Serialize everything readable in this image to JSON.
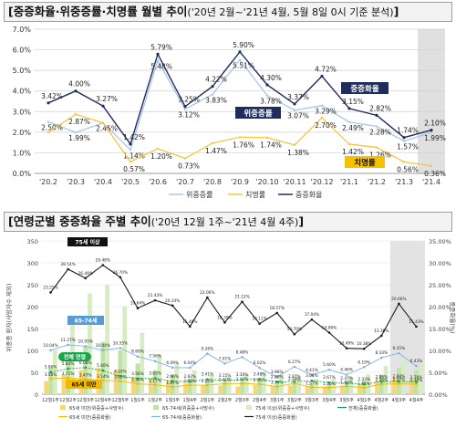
{
  "chart_data": [
    {
      "type": "line",
      "title": "[중증화율·위중증률·치명률 월별 추이",
      "subtitle": "('20년 2월~'21년 4월, 5월 8일 0시 기준 분석)",
      "title_close": "]",
      "categories": [
        "'20.2",
        "'20.3",
        "'20.4",
        "'20.5",
        "'20.6",
        "'20.7",
        "'20.8",
        "'20.9",
        "'20.10",
        "'20.11",
        "'20.12",
        "'21.1",
        "'21.2",
        "'21.3",
        "'21.4"
      ],
      "ylim": [
        0,
        7
      ],
      "yticks": [
        "0.0%",
        "1.0%",
        "2.0%",
        "3.0%",
        "4.0%",
        "5.0%",
        "6.0%",
        "7.0%"
      ],
      "grid": true,
      "legend": "bottom",
      "shaded_category": "'21.4",
      "series": [
        {
          "name": "위중증률",
          "color": "#a7c7e7",
          "values": [
            2.5,
            1.99,
            2.45,
            1.14,
            5.48,
            3.12,
            3.83,
            5.51,
            3.78,
            3.07,
            3.29,
            2.49,
            2.28,
            1.57,
            1.99
          ],
          "labels": [
            "2.50%",
            "1.99%",
            "2.45%",
            "1.14%",
            "5.48%",
            "3.12%",
            "3.83%",
            "5.51%",
            "3.78%",
            "3.07%",
            "3.29%",
            "2.49%",
            "2.28%",
            "1.57%",
            "1.99%"
          ]
        },
        {
          "name": "치명률",
          "color": "#f6c542",
          "values": [
            1.99,
            2.87,
            2.45,
            0.57,
            1.2,
            0.73,
            1.47,
            1.76,
            1.74,
            1.38,
            2.7,
            1.42,
            1.26,
            0.56,
            0.36
          ],
          "labels": [
            "",
            "2.87%",
            "",
            "0.57%",
            "1.20%",
            "0.73%",
            "1.47%",
            "1.76%",
            "1.74%",
            "1.38%",
            "2.70%",
            "1.42%",
            "1.26%",
            "0.56%",
            "0.36%"
          ]
        },
        {
          "name": "중증화율",
          "color": "#1f2d5c",
          "values": [
            3.42,
            4.0,
            3.27,
            1.42,
            5.79,
            3.25,
            4.22,
            5.9,
            4.3,
            3.37,
            4.72,
            3.15,
            2.82,
            1.74,
            2.1
          ],
          "labels": [
            "3.42%",
            "4.00%",
            "3.27%",
            "1.42%",
            "5.79%",
            "3.25%",
            "4.22%",
            "5.90%",
            "4.30%",
            "3.37%",
            "4.72%",
            "3.15%",
            "2.82%",
            "1.74%",
            "2.10%"
          ]
        }
      ],
      "callouts": [
        {
          "text": "중증화율",
          "bg": "#1f2d5c",
          "fg": "#ffffff"
        },
        {
          "text": "위중증률",
          "bg": "#1f2d5c",
          "fg": "#ffffff"
        },
        {
          "text": "치명률",
          "bg": "#f6c000",
          "fg": "#111111"
        }
      ]
    },
    {
      "type": "bar+line",
      "title": "[연령군별 중증화율 주별 추이",
      "subtitle": "('20년 12월 1주~'21년 4월 4주)",
      "title_close": "]",
      "ylabel_left": "위중증 환자(사망자수 제외)",
      "ylabel_right": "중증화율(%)",
      "categories": [
        "12월1주",
        "12월2주",
        "12월3주",
        "12월4주",
        "12월5주",
        "1월1주",
        "1월2주",
        "1월3주",
        "1월4주",
        "2월1주",
        "2월2주",
        "2월3주",
        "2월4주",
        "3월1주",
        "3월2주",
        "3월3주",
        "3월4주",
        "3월5주",
        "4월1주",
        "4월2주",
        "4월3주",
        "4월4주"
      ],
      "y_left_lim": [
        0,
        350
      ],
      "y_left_ticks": [
        "0",
        "50",
        "100",
        "150",
        "200",
        "250",
        "300",
        "350"
      ],
      "y_right_lim": [
        0,
        35
      ],
      "y_right_ticks": [
        "0.00%",
        "5.00%",
        "10.00%",
        "15.00%",
        "20.00%",
        "25.00%",
        "30.00%",
        "35.00%"
      ],
      "shaded_categories": [
        "4월3주",
        "4월4주"
      ],
      "bars": [
        {
          "name": "65세 미만(위중증+사망수)",
          "color": "#f7d774",
          "values": [
            30,
            45,
            55,
            60,
            55,
            40,
            35,
            30,
            25,
            20,
            20,
            18,
            22,
            20,
            20,
            18,
            18,
            20,
            22,
            30,
            38,
            35
          ]
        },
        {
          "name": "65-74세(위중증+사망수)",
          "color": "#bfe3a6",
          "values": [
            60,
            90,
            110,
            120,
            100,
            70,
            55,
            45,
            35,
            30,
            28,
            30,
            35,
            30,
            28,
            25,
            25,
            28,
            30,
            45,
            60,
            55
          ]
        },
        {
          "name": "75세 이상(위중증+사망수)",
          "color": "#d8ecc4",
          "values": [
            100,
            160,
            230,
            250,
            200,
            140,
            90,
            70,
            55,
            45,
            40,
            45,
            50,
            45,
            40,
            35,
            35,
            40,
            45,
            65,
            80,
            75
          ]
        }
      ],
      "series": [
        {
          "name": "65세 미만(중증화율)",
          "color": "#f2b800",
          "values": [
            3.56,
            3.71,
            3.47,
            3.14,
            3.03,
            2.36,
            2.17,
            1.67,
            2.06,
            2.06,
            2.41,
            2.47,
            2.31,
            1.74,
            2.48,
            1.57,
            1.5,
            1.8,
            1.51,
            2.3,
            2.37,
            2.3
          ],
          "labels": [
            "3.56%",
            "3.71%",
            "3.47%",
            "3.14%",
            "3.03%",
            "2.36%",
            "2.17%",
            "1.67%",
            "2.06%",
            "2.06%",
            "2.41%",
            "2.47%",
            "2.31%",
            "1.74%",
            "2.48%",
            "1.57%",
            "1.50%",
            "1.80%",
            "1.51%",
            "2.30%",
            "2.37%",
            "2.30%"
          ]
        },
        {
          "name": "65-74세(중증화율)",
          "color": "#7fb2e5",
          "values": [
            10.04,
            11.27,
            10.95,
            10.04,
            10.55,
            8.6,
            7.56,
            6.09,
            6.04,
            9.26,
            7.01,
            8.48,
            6.02,
            3.96,
            6.27,
            4.41,
            5.6,
            4.46,
            6.19,
            8.33,
            9.35,
            6.43
          ],
          "labels": [
            "10.04%",
            "11.27%",
            "10.95%",
            "10.04%",
            "10.55%",
            "8.60%",
            "7.56%",
            "6.09%",
            "6.04%",
            "9.26%",
            "7.01%",
            "8.48%",
            "6.02%",
            "3.96%",
            "6.27%",
            "4.41%",
            "5.60%",
            "4.46%",
            "6.19%",
            "8.33%",
            "9.35%",
            "6.43%"
          ]
        },
        {
          "name": "75세 이상(중증화율)",
          "color": "#1a1a1a",
          "values": [
            23.25,
            28.54,
            26.49,
            29.48,
            26.7,
            19.64,
            21.43,
            20.24,
            15.46,
            22.06,
            16.39,
            21.12,
            16.11,
            18.57,
            13.7,
            17.04,
            14.06,
            10.49,
            10.38,
            13.36,
            20.66,
            15.43
          ],
          "labels": [
            "23.25%",
            "28.54%",
            "26.49%",
            "29.48%",
            "26.70%",
            "19.64%",
            "21.43%",
            "20.24%",
            "15.46%",
            "22.06%",
            "16.39%",
            "21.12%",
            "16.11%",
            "18.57%",
            "13.70%",
            "17.04%",
            "14.06%",
            "10.49%",
            "10.38%",
            "13.36%",
            "20.66%",
            "15.43%"
          ]
        },
        {
          "name": "전체(중증화율)",
          "color": "#1aa34a",
          "values": [
            5.06,
            5.83,
            6.08,
            5.4,
            4.1,
            3.56,
            3.65,
            2.96,
            2.92,
            3.41,
            3.15,
            3.3,
            3.48,
            2.8,
            2.87,
            3.08,
            2.67,
            2.47,
            2.33,
            2.86,
            2.88,
            2.76
          ],
          "labels": [
            "5.06%",
            "5.83%",
            "6.08%",
            "5.40%",
            "4.10%",
            "3.56%",
            "3.65%",
            "2.96%",
            "2.92%",
            "3.41%",
            "3.15%",
            "3.30%",
            "3.48%",
            "2.80%",
            "2.87%",
            "3.08%",
            "2.67%",
            "2.47%",
            "2.33%",
            "2.86%",
            "2.88%",
            "2.76%"
          ]
        }
      ],
      "callouts": [
        {
          "text": "75세 이상",
          "bg": "#111111",
          "fg": "#ffffff"
        },
        {
          "text": "65-74세",
          "bg": "#5b9bd5",
          "fg": "#ffffff"
        },
        {
          "text": "전체 연령",
          "bg": "#1aa34a",
          "fg": "#ffffff"
        },
        {
          "text": "65세 미만",
          "bg": "#f2b800",
          "fg": "#111111"
        }
      ],
      "legend": "bottom"
    }
  ]
}
